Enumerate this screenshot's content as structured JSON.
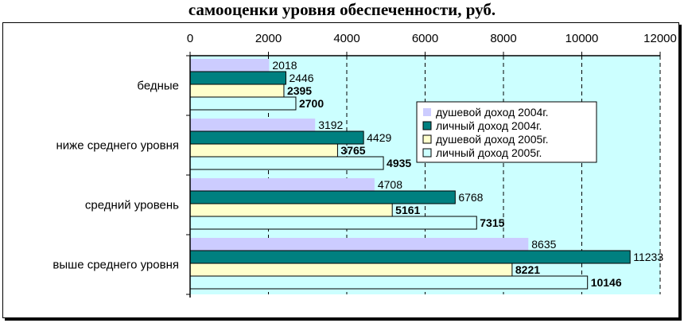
{
  "page_title": "самооценки уровня обеспеченности, руб.",
  "chart_data": {
    "type": "bar",
    "orientation": "horizontal",
    "title": "самооценки уровня обеспеченности, руб.",
    "categories": [
      "бедные",
      "ниже среднего уровня",
      "средний уровень",
      "выше среднего уровня"
    ],
    "series": [
      {
        "name": "душевой доход 2004г.",
        "color": "#ccccff",
        "label_bold": false,
        "values": [
          2018,
          3192,
          4708,
          8635
        ]
      },
      {
        "name": "личный доход 2004г.",
        "color": "#008080",
        "label_bold": false,
        "values": [
          2446,
          4429,
          6768,
          11233
        ]
      },
      {
        "name": "душевой доход 2005г.",
        "color": "#ffffcc",
        "label_bold": true,
        "values": [
          2395,
          3765,
          5161,
          8221
        ]
      },
      {
        "name": "личный доход 2005г.",
        "color": "#ccffff",
        "label_bold": true,
        "values": [
          2700,
          4935,
          7315,
          10146
        ]
      }
    ],
    "xlim": [
      0,
      12000
    ],
    "x_ticks": [
      0,
      2000,
      4000,
      6000,
      8000,
      10000,
      12000
    ],
    "axis_position": "top",
    "plot_background": "#ccffff",
    "grid": "dashed vertical",
    "legend_position": "center-right"
  }
}
